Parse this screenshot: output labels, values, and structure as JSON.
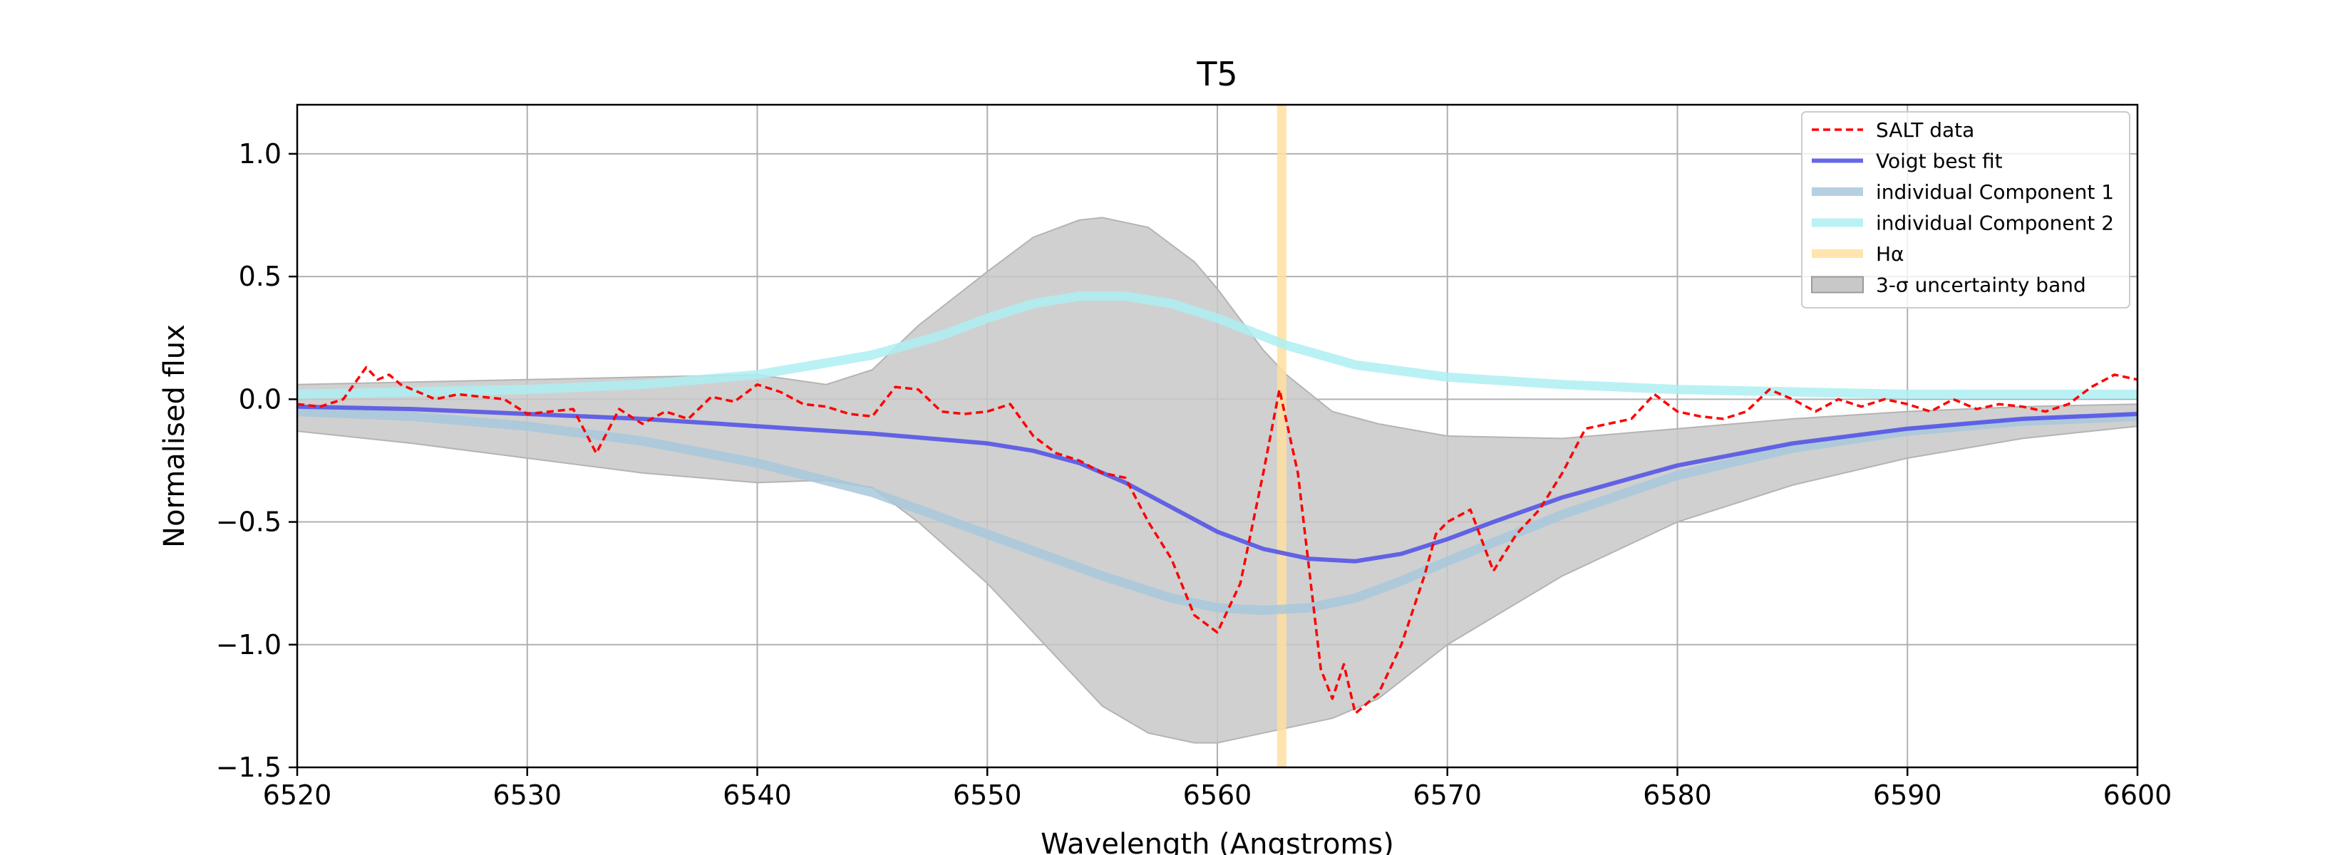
{
  "chart_data": {
    "type": "line",
    "title": "T5",
    "xlabel": "Wavelength (Angstroms)",
    "ylabel": "Normalised flux",
    "xlim": [
      6520,
      6600
    ],
    "ylim": [
      -1.5,
      1.2
    ],
    "xticks": [
      6520,
      6530,
      6540,
      6550,
      6560,
      6570,
      6580,
      6590,
      6600
    ],
    "yticks": [
      -1.5,
      -1.0,
      -0.5,
      0.0,
      0.5,
      1.0
    ],
    "xtick_labels": [
      "6520",
      "6530",
      "6540",
      "6550",
      "6560",
      "6570",
      "6580",
      "6590",
      "6600"
    ],
    "ytick_labels": [
      "−1.5",
      "−1.0",
      "−0.5",
      "0.0",
      "0.5",
      "1.0"
    ],
    "grid": true,
    "legend_position": "top-right",
    "vline": {
      "name": "Hα",
      "x": 6562.8,
      "color": "#ffdfa0"
    },
    "series": [
      {
        "name": "SALT data",
        "style": "dashed",
        "color": "#ff0000",
        "x": [
          6520,
          6521,
          6522,
          6523,
          6523.5,
          6524,
          6524.5,
          6525,
          6526,
          6527,
          6528,
          6529,
          6530,
          6531,
          6532,
          6533,
          6534,
          6535,
          6536,
          6537,
          6538,
          6539,
          6540,
          6541,
          6542,
          6543,
          6544,
          6545,
          6546,
          6547,
          6548,
          6549,
          6550,
          6551,
          6552,
          6553,
          6554,
          6555,
          6556,
          6557,
          6558,
          6559,
          6560,
          6561,
          6562,
          6562.7,
          6563.5,
          6564,
          6564.5,
          6565,
          6565.5,
          6566,
          6567,
          6568,
          6569,
          6569.5,
          6570,
          6571,
          6572,
          6573,
          6574,
          6575,
          6576,
          6577,
          6578,
          6579,
          6580,
          6581,
          6582,
          6583,
          6584,
          6585,
          6586,
          6587,
          6588,
          6589,
          6590,
          6591,
          6592,
          6593,
          6594,
          6595,
          6596,
          6597,
          6598,
          6599,
          6600
        ],
        "y": [
          -0.02,
          -0.03,
          0.0,
          0.13,
          0.08,
          0.1,
          0.06,
          0.04,
          0.0,
          0.02,
          0.01,
          0.0,
          -0.06,
          -0.05,
          -0.04,
          -0.22,
          -0.04,
          -0.1,
          -0.05,
          -0.08,
          0.01,
          -0.01,
          0.06,
          0.03,
          -0.02,
          -0.03,
          -0.06,
          -0.07,
          0.05,
          0.04,
          -0.05,
          -0.06,
          -0.05,
          -0.02,
          -0.15,
          -0.22,
          -0.25,
          -0.3,
          -0.32,
          -0.5,
          -0.65,
          -0.88,
          -0.95,
          -0.75,
          -0.3,
          0.04,
          -0.3,
          -0.7,
          -1.1,
          -1.22,
          -1.08,
          -1.28,
          -1.2,
          -1.0,
          -0.72,
          -0.55,
          -0.5,
          -0.45,
          -0.7,
          -0.55,
          -0.45,
          -0.3,
          -0.12,
          -0.1,
          -0.08,
          0.02,
          -0.05,
          -0.07,
          -0.08,
          -0.05,
          0.04,
          0.0,
          -0.05,
          0.0,
          -0.03,
          0.0,
          -0.02,
          -0.05,
          0.0,
          -0.04,
          -0.02,
          -0.03,
          -0.05,
          -0.02,
          0.05,
          0.1,
          0.08
        ]
      },
      {
        "name": "Voigt best fit",
        "style": "solid",
        "color": "#5555e6",
        "x": [
          6520,
          6525,
          6530,
          6535,
          6540,
          6545,
          6550,
          6552,
          6554,
          6556,
          6558,
          6560,
          6562,
          6564,
          6566,
          6568,
          6570,
          6572,
          6575,
          6580,
          6585,
          6590,
          6595,
          6600
        ],
        "y": [
          -0.03,
          -0.04,
          -0.06,
          -0.08,
          -0.11,
          -0.14,
          -0.18,
          -0.21,
          -0.26,
          -0.34,
          -0.44,
          -0.54,
          -0.61,
          -0.65,
          -0.66,
          -0.63,
          -0.57,
          -0.5,
          -0.4,
          -0.27,
          -0.18,
          -0.12,
          -0.08,
          -0.06
        ]
      },
      {
        "name": "individual Component 1",
        "style": "solid",
        "color": "#a8c8dc",
        "x": [
          6520,
          6525,
          6530,
          6535,
          6540,
          6545,
          6550,
          6555,
          6558,
          6560,
          6562,
          6564,
          6566,
          6568,
          6570,
          6575,
          6580,
          6585,
          6590,
          6595,
          6600
        ],
        "y": [
          -0.05,
          -0.07,
          -0.11,
          -0.17,
          -0.26,
          -0.38,
          -0.55,
          -0.72,
          -0.81,
          -0.85,
          -0.86,
          -0.85,
          -0.81,
          -0.74,
          -0.66,
          -0.47,
          -0.31,
          -0.2,
          -0.13,
          -0.09,
          -0.07
        ]
      },
      {
        "name": "individual Component 2",
        "style": "solid",
        "color": "#aeeef2",
        "x": [
          6520,
          6525,
          6530,
          6535,
          6540,
          6545,
          6548,
          6550,
          6552,
          6554,
          6556,
          6558,
          6560,
          6563,
          6566,
          6570,
          6575,
          6580,
          6585,
          6590,
          6595,
          6600
        ],
        "y": [
          0.02,
          0.03,
          0.04,
          0.06,
          0.1,
          0.18,
          0.26,
          0.33,
          0.39,
          0.42,
          0.42,
          0.39,
          0.33,
          0.22,
          0.14,
          0.09,
          0.06,
          0.04,
          0.03,
          0.02,
          0.02,
          0.02
        ]
      }
    ],
    "band": {
      "name": "3-σ uncertainty band",
      "color": "#c8c8c8",
      "x": [
        6520,
        6525,
        6530,
        6535,
        6540,
        6543,
        6545,
        6547,
        6550,
        6552,
        6554,
        6555,
        6557,
        6559,
        6560,
        6562,
        6563,
        6565,
        6567,
        6570,
        6575,
        6580,
        6585,
        6590,
        6595,
        6600
      ],
      "upper": [
        0.06,
        0.07,
        0.08,
        0.09,
        0.1,
        0.06,
        0.12,
        0.3,
        0.52,
        0.66,
        0.73,
        0.74,
        0.7,
        0.56,
        0.45,
        0.2,
        0.1,
        -0.05,
        -0.1,
        -0.15,
        -0.16,
        -0.12,
        -0.08,
        -0.05,
        -0.03,
        -0.02
      ],
      "lower": [
        -0.13,
        -0.18,
        -0.24,
        -0.3,
        -0.34,
        -0.33,
        -0.36,
        -0.5,
        -0.75,
        -0.95,
        -1.15,
        -1.25,
        -1.36,
        -1.4,
        -1.4,
        -1.36,
        -1.34,
        -1.3,
        -1.22,
        -1.0,
        -0.72,
        -0.5,
        -0.35,
        -0.24,
        -0.16,
        -0.11
      ]
    }
  }
}
